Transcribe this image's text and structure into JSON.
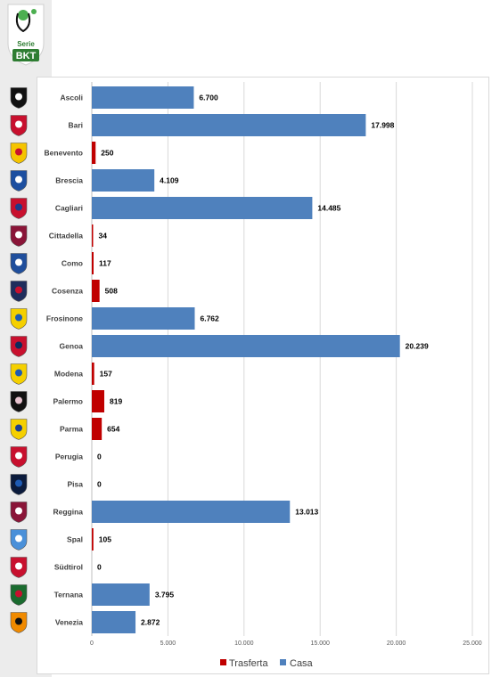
{
  "logo": {
    "top_text": "Serie",
    "brand_text": "BKT"
  },
  "chart_data": {
    "type": "bar",
    "orientation": "horizontal",
    "categories": [
      "Ascoli",
      "Bari",
      "Benevento",
      "Brescia",
      "Cagliari",
      "Cittadella",
      "Como",
      "Cosenza",
      "Frosinone",
      "Genoa",
      "Modena",
      "Palermo",
      "Parma",
      "Perugia",
      "Pisa",
      "Reggina",
      "Spal",
      "Südtirol",
      "Ternana",
      "Venezia"
    ],
    "values": [
      6700,
      17998,
      250,
      4109,
      14485,
      34,
      117,
      508,
      6762,
      20239,
      157,
      819,
      654,
      0,
      0,
      13013,
      105,
      0,
      3795,
      2872
    ],
    "value_labels": [
      "6.700",
      "17.998",
      "250",
      "4.109",
      "14.485",
      "34",
      "117",
      "508",
      "6.762",
      "20.239",
      "157",
      "819",
      "654",
      "0",
      "0",
      "13.013",
      "105",
      "0",
      "3.795",
      "2.872"
    ],
    "bar_series": [
      "Casa",
      "Casa",
      "Trasferta",
      "Casa",
      "Casa",
      "Trasferta",
      "Trasferta",
      "Trasferta",
      "Casa",
      "Casa",
      "Trasferta",
      "Trasferta",
      "Trasferta",
      "Trasferta",
      "Trasferta",
      "Casa",
      "Trasferta",
      "Trasferta",
      "Casa",
      "Casa"
    ],
    "series": [
      {
        "name": "Trasferta",
        "color": "#c00000"
      },
      {
        "name": "Casa",
        "color": "#4f81bd"
      }
    ],
    "xlim": [
      0,
      25000
    ],
    "xticks": [
      0,
      5000,
      10000,
      15000,
      20000,
      25000
    ],
    "xtick_labels": [
      "0",
      "5.000",
      "10.000",
      "15.000",
      "20.000",
      "25.000"
    ],
    "grid": true,
    "legend_position": "bottom",
    "team_badge_icons": [
      "ascoli-badge-icon",
      "bari-badge-icon",
      "benevento-badge-icon",
      "brescia-badge-icon",
      "cagliari-badge-icon",
      "cittadella-badge-icon",
      "como-badge-icon",
      "cosenza-badge-icon",
      "frosinone-badge-icon",
      "genoa-badge-icon",
      "modena-badge-icon",
      "palermo-badge-icon",
      "parma-badge-icon",
      "perugia-badge-icon",
      "pisa-badge-icon",
      "reggina-badge-icon",
      "spal-badge-icon",
      "sudtirol-badge-icon",
      "ternana-badge-icon",
      "venezia-badge-icon"
    ],
    "badge_colors": [
      [
        "#111111",
        "#ffffff"
      ],
      [
        "#c8102e",
        "#ffffff"
      ],
      [
        "#f5c400",
        "#c8102e"
      ],
      [
        "#1d4fa0",
        "#ffffff"
      ],
      [
        "#c8102e",
        "#1d3c8a"
      ],
      [
        "#8a1538",
        "#ffffff"
      ],
      [
        "#1f4e9c",
        "#ffffff"
      ],
      [
        "#1f2d5c",
        "#c8102e"
      ],
      [
        "#f5d000",
        "#1e5bb4"
      ],
      [
        "#c8102e",
        "#0b2b5c"
      ],
      [
        "#f5d000",
        "#1e5bb4"
      ],
      [
        "#111111",
        "#e8c4d0"
      ],
      [
        "#f5d000",
        "#1e3f8f"
      ],
      [
        "#c8102e",
        "#ffffff"
      ],
      [
        "#0b1b3c",
        "#1e5bb4"
      ],
      [
        "#8a1538",
        "#ffffff"
      ],
      [
        "#4a90d9",
        "#ffffff"
      ],
      [
        "#c8102e",
        "#ffffff"
      ],
      [
        "#1a6b2f",
        "#c8102e"
      ],
      [
        "#f08a00",
        "#111111"
      ]
    ]
  }
}
